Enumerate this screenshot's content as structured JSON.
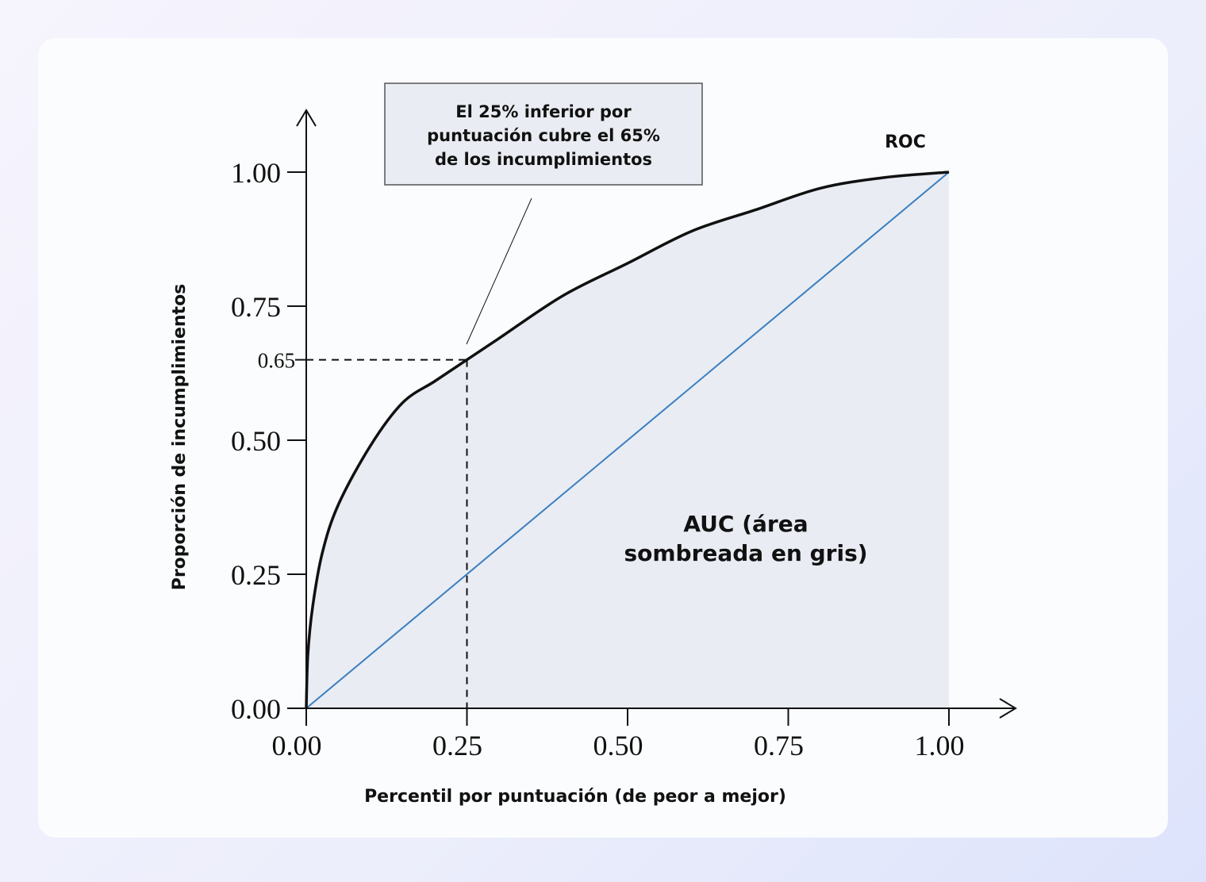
{
  "chart_data": {
    "type": "area",
    "xlabel": "Percentil por puntuación (de peor a mejor)",
    "ylabel": "Proporción de incumplimientos",
    "xlim": [
      0,
      1
    ],
    "ylim": [
      0,
      1
    ],
    "x_ticks": [
      "0.00",
      "0.25",
      "0.50",
      "0.75",
      "1.00"
    ],
    "y_ticks": [
      "0.00",
      "0.25",
      "0.50",
      "0.75",
      "1.00"
    ],
    "highlight_point": {
      "x": 0.25,
      "y": 0.65,
      "y_label": "0.65"
    },
    "series": [
      {
        "name": "ROC",
        "color": "#111111",
        "filled": true,
        "fill_color": "#e9ecf3",
        "x": [
          0,
          0.0025,
          0.01,
          0.025,
          0.05,
          0.1,
          0.15,
          0.2,
          0.25,
          0.3,
          0.4,
          0.5,
          0.6,
          0.7,
          0.8,
          0.9,
          1.0
        ],
        "y": [
          0,
          0.1,
          0.19,
          0.29,
          0.38,
          0.49,
          0.57,
          0.61,
          0.65,
          0.69,
          0.77,
          0.83,
          0.89,
          0.93,
          0.97,
          0.99,
          1.0
        ]
      },
      {
        "color": "#3a7fc1",
        "x": [
          0,
          1
        ],
        "y": [
          0,
          1
        ]
      }
    ],
    "annotations": {
      "callout_lines": [
        "El 25% inferior por",
        "puntuación cubre el 65%",
        "de los incumplimientos"
      ],
      "auc_lines": [
        "AUC (área",
        "sombreada en gris)"
      ]
    }
  }
}
